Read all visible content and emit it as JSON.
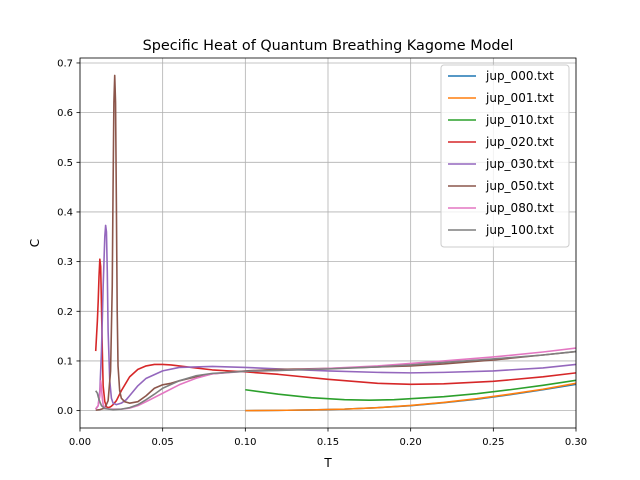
{
  "chart_data": {
    "type": "line",
    "title": "Specific Heat of Quantum Breathing Kagome Model",
    "xlabel": "T",
    "ylabel": "C",
    "xlim": [
      0.0,
      0.3
    ],
    "ylim": [
      -0.035,
      0.71
    ],
    "xticks": [
      "0.00",
      "0.05",
      "0.10",
      "0.15",
      "0.20",
      "0.25",
      "0.30"
    ],
    "xtick_values": [
      0.0,
      0.05,
      0.1,
      0.15,
      0.2,
      0.25,
      0.3
    ],
    "yticks": [
      "0.0",
      "0.1",
      "0.2",
      "0.3",
      "0.4",
      "0.5",
      "0.6",
      "0.7"
    ],
    "ytick_values": [
      0.0,
      0.1,
      0.2,
      0.3,
      0.4,
      0.5,
      0.6,
      0.7
    ],
    "grid": true,
    "legend_position": "top-right",
    "series": [
      {
        "name": "jup_000.txt",
        "color": "#1f77b4",
        "x": [
          0.1,
          0.12,
          0.14,
          0.16,
          0.18,
          0.2,
          0.22,
          0.24,
          0.26,
          0.28,
          0.3
        ],
        "y": [
          0.0,
          0.0005,
          0.0015,
          0.003,
          0.006,
          0.01,
          0.016,
          0.023,
          0.032,
          0.042,
          0.053
        ]
      },
      {
        "name": "jup_001.txt",
        "color": "#ff7f0e",
        "x": [
          0.1,
          0.12,
          0.14,
          0.16,
          0.18,
          0.2,
          0.22,
          0.24,
          0.26,
          0.28,
          0.3
        ],
        "y": [
          0.0,
          0.0005,
          0.0015,
          0.003,
          0.006,
          0.0105,
          0.0165,
          0.024,
          0.033,
          0.043,
          0.055
        ]
      },
      {
        "name": "jup_010.txt",
        "color": "#2ca02c",
        "x": [
          0.1,
          0.12,
          0.14,
          0.16,
          0.175,
          0.19,
          0.2,
          0.22,
          0.24,
          0.26,
          0.28,
          0.3
        ],
        "y": [
          0.042,
          0.033,
          0.026,
          0.022,
          0.021,
          0.022,
          0.024,
          0.028,
          0.034,
          0.042,
          0.051,
          0.061
        ]
      },
      {
        "name": "jup_020.txt",
        "color": "#d62728",
        "x": [
          0.0095,
          0.01,
          0.0105,
          0.011,
          0.0115,
          0.012,
          0.0125,
          0.013,
          0.0135,
          0.014,
          0.015,
          0.016,
          0.017,
          0.018,
          0.019,
          0.02,
          0.022,
          0.025,
          0.03,
          0.035,
          0.04,
          0.045,
          0.05,
          0.055,
          0.06,
          0.07,
          0.08,
          0.1,
          0.12,
          0.15,
          0.18,
          0.2,
          0.22,
          0.25,
          0.28,
          0.3
        ],
        "y": [
          0.12,
          0.15,
          0.18,
          0.22,
          0.27,
          0.305,
          0.29,
          0.21,
          0.12,
          0.05,
          0.018,
          0.008,
          0.006,
          0.007,
          0.009,
          0.012,
          0.02,
          0.04,
          0.068,
          0.083,
          0.09,
          0.093,
          0.093,
          0.092,
          0.09,
          0.086,
          0.082,
          0.078,
          0.073,
          0.063,
          0.055,
          0.053,
          0.054,
          0.059,
          0.068,
          0.076
        ]
      },
      {
        "name": "jup_030.txt",
        "color": "#9467bd",
        "x": [
          0.0095,
          0.011,
          0.012,
          0.013,
          0.014,
          0.015,
          0.0155,
          0.016,
          0.0165,
          0.017,
          0.018,
          0.019,
          0.02,
          0.022,
          0.025,
          0.028,
          0.03,
          0.035,
          0.04,
          0.05,
          0.06,
          0.08,
          0.1,
          0.12,
          0.15,
          0.18,
          0.2,
          0.22,
          0.25,
          0.28,
          0.3
        ],
        "y": [
          0.003,
          0.01,
          0.04,
          0.12,
          0.25,
          0.35,
          0.373,
          0.36,
          0.28,
          0.16,
          0.06,
          0.025,
          0.015,
          0.012,
          0.015,
          0.022,
          0.03,
          0.05,
          0.065,
          0.08,
          0.087,
          0.089,
          0.087,
          0.084,
          0.08,
          0.077,
          0.076,
          0.077,
          0.08,
          0.086,
          0.093
        ]
      },
      {
        "name": "jup_050.txt",
        "color": "#8c564b",
        "x": [
          0.0095,
          0.012,
          0.015,
          0.017,
          0.0185,
          0.0195,
          0.02,
          0.0205,
          0.021,
          0.0215,
          0.022,
          0.0225,
          0.023,
          0.024,
          0.025,
          0.027,
          0.03,
          0.035,
          0.04,
          0.045,
          0.05,
          0.055,
          0.06,
          0.07,
          0.08,
          0.1,
          0.12,
          0.15,
          0.18,
          0.2,
          0.22,
          0.25,
          0.28,
          0.3
        ],
        "y": [
          0.001,
          0.002,
          0.005,
          0.02,
          0.08,
          0.25,
          0.45,
          0.62,
          0.675,
          0.62,
          0.42,
          0.2,
          0.09,
          0.04,
          0.025,
          0.018,
          0.015,
          0.018,
          0.03,
          0.045,
          0.052,
          0.055,
          0.06,
          0.068,
          0.074,
          0.08,
          0.083,
          0.085,
          0.088,
          0.09,
          0.094,
          0.102,
          0.112,
          0.119
        ]
      },
      {
        "name": "jup_080.txt",
        "color": "#e377c2",
        "x": [
          0.0095,
          0.011,
          0.012,
          0.0125,
          0.013,
          0.0135,
          0.014,
          0.015,
          0.016,
          0.018,
          0.02,
          0.025,
          0.03,
          0.035,
          0.04,
          0.05,
          0.06,
          0.07,
          0.08,
          0.1,
          0.12,
          0.15,
          0.18,
          0.2,
          0.22,
          0.25,
          0.28,
          0.3
        ],
        "y": [
          0.003,
          0.01,
          0.03,
          0.06,
          0.045,
          0.025,
          0.012,
          0.006,
          0.004,
          0.003,
          0.003,
          0.003,
          0.005,
          0.01,
          0.018,
          0.035,
          0.052,
          0.065,
          0.074,
          0.079,
          0.081,
          0.085,
          0.09,
          0.095,
          0.1,
          0.108,
          0.118,
          0.126
        ]
      },
      {
        "name": "jup_100.txt",
        "color": "#7f7f7f",
        "x": [
          0.0095,
          0.0105,
          0.011,
          0.012,
          0.013,
          0.015,
          0.02,
          0.025,
          0.03,
          0.035,
          0.04,
          0.045,
          0.05,
          0.06,
          0.07,
          0.08,
          0.1,
          0.12,
          0.15,
          0.18,
          0.2,
          0.22,
          0.25,
          0.28,
          0.3
        ],
        "y": [
          0.04,
          0.035,
          0.028,
          0.018,
          0.01,
          0.004,
          0.002,
          0.003,
          0.006,
          0.012,
          0.022,
          0.033,
          0.045,
          0.06,
          0.07,
          0.075,
          0.079,
          0.081,
          0.084,
          0.088,
          0.092,
          0.097,
          0.104,
          0.112,
          0.119
        ]
      }
    ]
  }
}
